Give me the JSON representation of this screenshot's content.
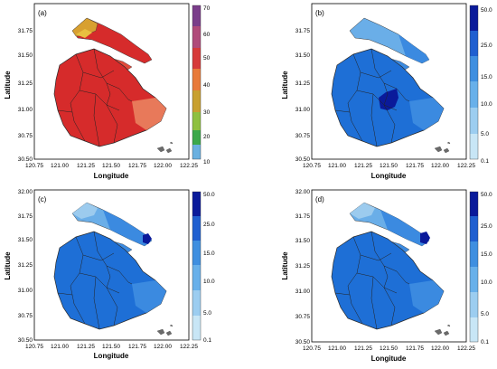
{
  "figure": {
    "axes": {
      "x_label": "Longitude",
      "y_label": "Latitude",
      "x_ticks": [
        "120.75",
        "121.00",
        "121.25",
        "121.50",
        "121.75",
        "122.00",
        "122.25"
      ],
      "y_ticks": [
        "32.00",
        "31.75",
        "31.50",
        "31.25",
        "31.00",
        "30.75",
        "30.50"
      ]
    },
    "panels": [
      {
        "tag": "(a)",
        "x_ticks": [
          "120.75",
          "121.00",
          "121.25",
          "121.50",
          "121.75",
          "122.00",
          "122.25"
        ],
        "y_ticks": [
          "31.75",
          "31.50",
          "31.25",
          "31.00",
          "30.75",
          "30.50"
        ],
        "scheme": "warm",
        "colorbar_ticks": [
          "70",
          "60",
          "50",
          "40",
          "30",
          "20",
          "10"
        ]
      },
      {
        "tag": "(b)",
        "x_ticks": [
          "120.75",
          "121.00",
          "121.25",
          "121.50",
          "121.75",
          "122.00",
          "122.25"
        ],
        "y_ticks": [
          "31.75",
          "31.50",
          "31.25",
          "31.00",
          "30.75",
          "30.50"
        ],
        "scheme": "blue",
        "colorbar_ticks": [
          "50.0",
          "25.0",
          "15.0",
          "10.0",
          "5.0",
          "0.1"
        ]
      },
      {
        "tag": "(c)",
        "x_ticks": [
          "120.75",
          "121.00",
          "121.25",
          "121.50",
          "121.75",
          "122.00",
          "122.25"
        ],
        "y_ticks": [
          "32.00",
          "31.75",
          "31.50",
          "31.25",
          "31.00",
          "30.75",
          "30.50"
        ],
        "scheme": "blue",
        "colorbar_ticks": [
          "50.0",
          "25.0",
          "15.0",
          "10.0",
          "5.0",
          "0.1"
        ]
      },
      {
        "tag": "(d)",
        "x_ticks": [
          "120.75",
          "121.00",
          "121.25",
          "121.50",
          "121.75",
          "122.00",
          "122.25"
        ],
        "y_ticks": [
          "32.00",
          "31.75",
          "31.50",
          "31.25",
          "31.00",
          "30.75",
          "30.50"
        ],
        "scheme": "blue",
        "colorbar_ticks": [
          "50.0",
          "25.0",
          "15.0",
          "10.0",
          "5.0",
          "0.1"
        ]
      }
    ],
    "colors": {
      "warm": [
        "#d62b2b",
        "#e04a3a",
        "#e8795a",
        "#d8a030",
        "#a8c040",
        "#3ba84a",
        "#8fd08f"
      ],
      "blue": [
        "#1e6fd6",
        "#3b8ae0",
        "#6aaee8",
        "#9ccbee",
        "#c8e6f6",
        "#0a1a9a"
      ],
      "warm_bar": [
        "#7a3d8a",
        "#b04a7a",
        "#d63a3a",
        "#e87a3a",
        "#c8a030",
        "#8fc040",
        "#3ba84a",
        "#6ab0e0"
      ],
      "blue_bar": [
        "#0a1a9a",
        "#1f5fd0",
        "#3f8fe0",
        "#68b0ea",
        "#9ccdf0",
        "#c8e6f6"
      ]
    }
  }
}
